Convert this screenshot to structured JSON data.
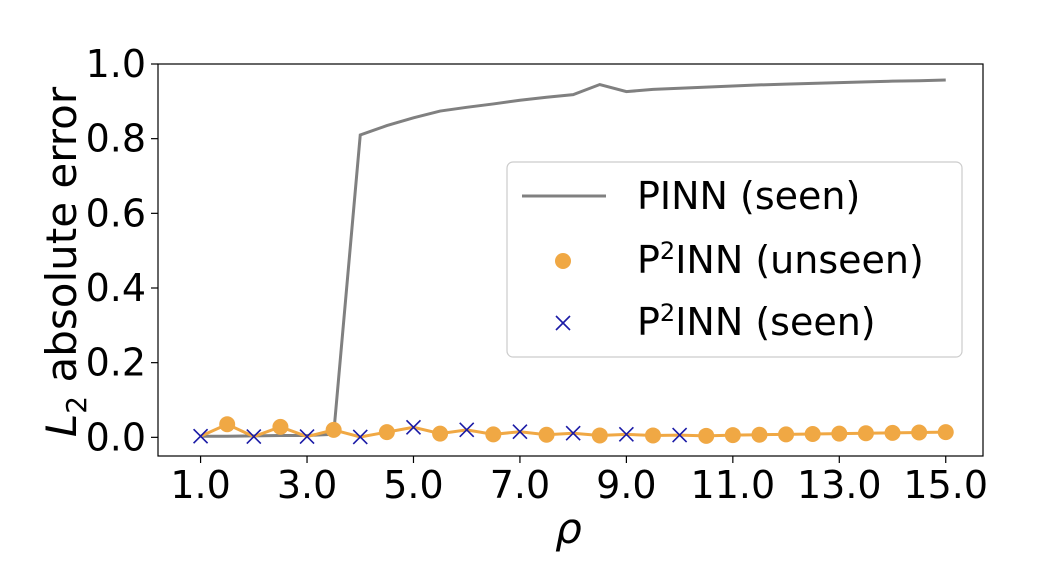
{
  "chart_data": {
    "type": "line",
    "title": "",
    "xlabel": "ρ",
    "ylabel_main": "L",
    "ylabel_sub": "2",
    "ylabel_rest": " absolute error",
    "xlim": [
      0.2,
      15.7
    ],
    "ylim": [
      -0.05,
      1.0
    ],
    "x_ticks": [
      1.0,
      3.0,
      5.0,
      7.0,
      9.0,
      11.0,
      13.0,
      15.0
    ],
    "x_tick_labels": [
      "1.0",
      "3.0",
      "5.0",
      "7.0",
      "9.0",
      "11.0",
      "13.0",
      "15.0"
    ],
    "y_ticks": [
      0.0,
      0.2,
      0.4,
      0.6,
      0.8,
      1.0
    ],
    "y_tick_labels": [
      "0.0",
      "0.2",
      "0.4",
      "0.6",
      "0.8",
      "1.0"
    ],
    "legend_position": "center-right",
    "series": [
      {
        "name": "PINN (seen)",
        "legend_label": "PINN (seen)",
        "marker": "none",
        "color": "#808080",
        "x": [
          1.0,
          1.5,
          2.0,
          2.5,
          3.0,
          3.5,
          4.0,
          4.5,
          5.0,
          5.5,
          6.0,
          6.5,
          7.0,
          7.5,
          8.0,
          8.5,
          9.0,
          9.5,
          10.0,
          10.5,
          11.0,
          11.5,
          12.0,
          12.5,
          13.0,
          13.5,
          14.0,
          14.5,
          15.0
        ],
        "y": [
          0.003,
          0.003,
          0.004,
          0.005,
          0.005,
          0.008,
          0.81,
          0.835,
          0.856,
          0.874,
          0.884,
          0.893,
          0.903,
          0.911,
          0.918,
          0.945,
          0.926,
          0.932,
          0.935,
          0.938,
          0.941,
          0.944,
          0.946,
          0.948,
          0.95,
          0.952,
          0.954,
          0.955,
          0.957
        ]
      },
      {
        "name": "P2INN (unseen)",
        "legend_label_main": "P",
        "legend_label_sup": "2",
        "legend_label_rest": "INN (unseen)",
        "marker": "circle",
        "color": "#f0a844",
        "x": [
          1.5,
          2.5,
          3.5,
          4.5,
          5.5,
          6.5,
          7.5,
          8.5,
          9.5,
          10.5,
          11.0,
          11.5,
          12.0,
          12.5,
          13.0,
          13.5,
          14.0,
          14.5,
          15.0
        ],
        "y": [
          0.035,
          0.028,
          0.02,
          0.014,
          0.01,
          0.008,
          0.007,
          0.005,
          0.005,
          0.004,
          0.006,
          0.007,
          0.008,
          0.009,
          0.01,
          0.011,
          0.012,
          0.013,
          0.014
        ]
      },
      {
        "name": "P2INN (seen)",
        "legend_label_main": "P",
        "legend_label_sup": "2",
        "legend_label_rest": "INN (seen)",
        "marker": "x",
        "color": "#1a1aa6",
        "x": [
          1.0,
          2.0,
          3.0,
          4.0,
          5.0,
          6.0,
          7.0,
          8.0,
          9.0,
          10.0
        ],
        "y": [
          0.003,
          0.002,
          0.002,
          0.001,
          0.027,
          0.02,
          0.015,
          0.011,
          0.008,
          0.006
        ]
      }
    ],
    "connecting_line": {
      "description_color": "#f0a844",
      "color": "#f0a844"
    }
  }
}
